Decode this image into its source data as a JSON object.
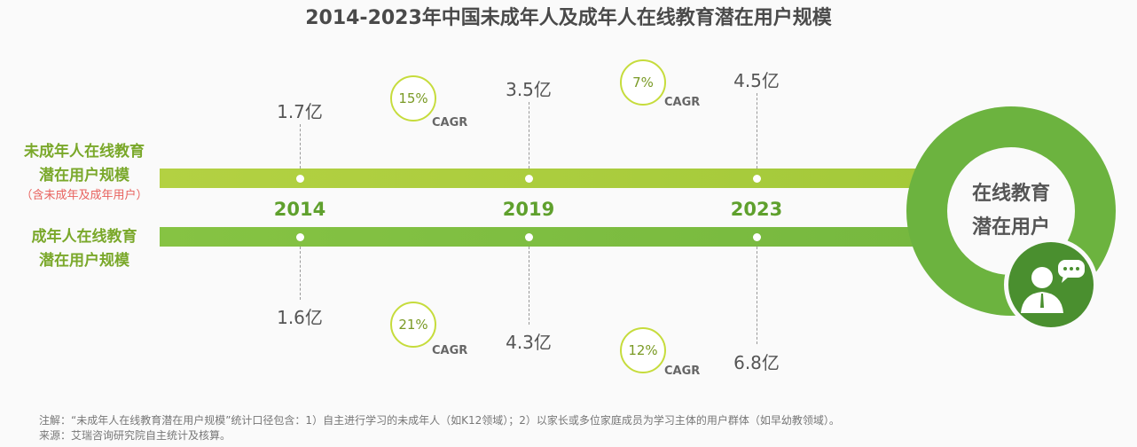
{
  "title": "2014-2023年中国未成年人及成年人在线教育潜在用户规模",
  "labels": {
    "top_line1": "未成年人在线教育",
    "top_line2": "潜在用户规模",
    "top_note": "（含未成年及成年用户）",
    "bottom_line1": "成年人在线教育",
    "bottom_line2": "潜在用户规模"
  },
  "years": [
    "2014",
    "2019",
    "2023"
  ],
  "top_values": [
    "1.7亿",
    "3.5亿",
    "4.5亿"
  ],
  "bottom_values": [
    "1.6亿",
    "4.3亿",
    "6.8亿"
  ],
  "top_cagr": [
    {
      "value": "15%",
      "label": "CAGR"
    },
    {
      "value": "7%",
      "label": "CAGR"
    }
  ],
  "bottom_cagr": [
    {
      "value": "21%",
      "label": "CAGR"
    },
    {
      "value": "12%",
      "label": "CAGR"
    }
  ],
  "ring": {
    "line1": "在线教育",
    "line2": "潜在用户",
    "icon": "user-chat-icon"
  },
  "colors": {
    "top_bar": "#a6cb3c",
    "bottom_bar": "#7abc40",
    "ring": "#6cb33f",
    "icon_circle": "#4a8f2f"
  },
  "footer": {
    "note": "注解：“未成年人在线教育潜在用户规模”统计口径包含：1）自主进行学习的未成年人（如K12领域）；2）以家长或多位家庭成员为学习主体的用户群体（如早幼教领域）。",
    "source": "来源：艾瑞咨询研究院自主统计及核算。"
  }
}
